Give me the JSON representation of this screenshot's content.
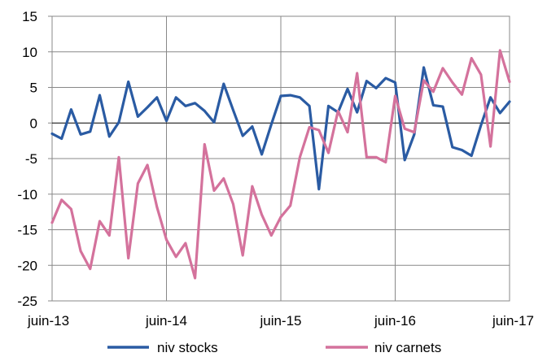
{
  "chart_data": {
    "type": "line",
    "title": "",
    "xlabel": "",
    "ylabel": "",
    "ylim": [
      -25,
      15
    ],
    "yticks": [
      15,
      10,
      5,
      0,
      -5,
      -10,
      -15,
      -20,
      -25
    ],
    "xticks": [
      "juin-13",
      "juin-14",
      "juin-15",
      "juin-16",
      "juin-17"
    ],
    "grid": true,
    "legend_position": "bottom",
    "series": [
      {
        "name": "niv stocks",
        "color": "#2a5ba3",
        "values": [
          -1.5,
          -2.2,
          1.9,
          -1.6,
          -1.2,
          3.9,
          -1.9,
          0.1,
          5.8,
          0.9,
          2.2,
          3.6,
          0.3,
          3.6,
          2.4,
          2.8,
          1.7,
          0.1,
          5.5,
          1.8,
          -1.8,
          -0.5,
          -4.4,
          -0.2,
          3.8,
          3.9,
          3.6,
          2.4,
          -9.3,
          2.4,
          1.5,
          4.8,
          1.5,
          5.9,
          4.9,
          6.3,
          5.7,
          -5.2,
          -1.6,
          7.8,
          2.5,
          2.3,
          -3.4,
          -3.8,
          -4.6,
          -0.3,
          3.6,
          1.4,
          3.0
        ]
      },
      {
        "name": "niv carnets",
        "color": "#d4729c",
        "values": [
          -14.0,
          -10.8,
          -12.1,
          -18.0,
          -20.5,
          -13.8,
          -15.8,
          -4.8,
          -19.0,
          -8.5,
          -5.9,
          -11.8,
          -16.4,
          -18.8,
          -16.9,
          -21.8,
          -3.0,
          -9.5,
          -7.8,
          -11.4,
          -18.6,
          -8.9,
          -12.9,
          -15.8,
          -13.2,
          -11.6,
          -4.8,
          -0.6,
          -1.0,
          -4.2,
          1.7,
          -1.3,
          7.0,
          -4.8,
          -4.8,
          -5.5,
          3.8,
          -0.8,
          -1.3,
          6.0,
          4.4,
          7.7,
          5.7,
          4.0,
          9.1,
          6.8,
          -3.3,
          10.2,
          5.8
        ]
      }
    ]
  }
}
